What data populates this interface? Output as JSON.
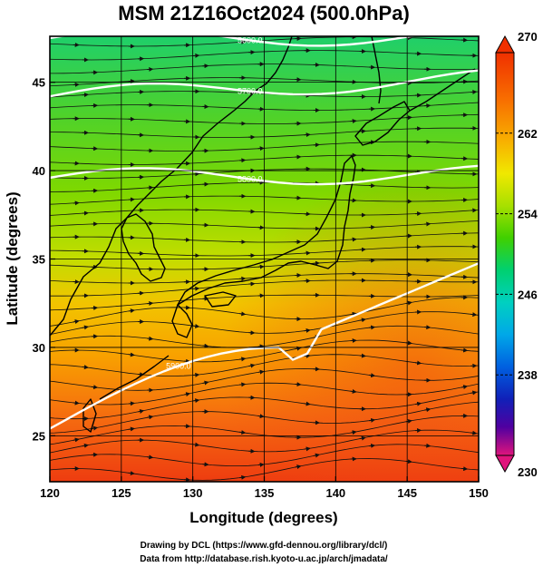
{
  "title": "MSM 21Z16Oct2024 (500.0hPa)",
  "x_axis": {
    "label": "Longitude (degrees)",
    "range": [
      120,
      150
    ],
    "ticks": [
      "120",
      "125",
      "130",
      "135",
      "140",
      "145",
      "150"
    ]
  },
  "y_axis": {
    "label": "Latitude  (degrees)",
    "range": [
      22.4,
      47.6
    ],
    "ticks": [
      "25",
      "30",
      "35",
      "40",
      "45"
    ]
  },
  "colorbar": {
    "min": 230,
    "max": 270,
    "labels": [
      "270",
      "262",
      "254",
      "246",
      "238",
      "230"
    ],
    "colors": [
      "#e0147c",
      "#b000a8",
      "#5000a0",
      "#1020b8",
      "#0060e0",
      "#00a8e8",
      "#00d0c0",
      "#00d070",
      "#40d000",
      "#a8e000",
      "#f0e800",
      "#f8b000",
      "#f87000",
      "#f03000"
    ]
  },
  "contours": {
    "color": "#ffffff",
    "lines": [
      {
        "label": "5600.0",
        "lat_at_120": 47.5,
        "lat_at_150": 47.6
      },
      {
        "label": "5700.0",
        "lat_at_120": 44.2,
        "lat_at_150": 45.2
      },
      {
        "label": "5800.0",
        "lat_at_120": 39.6,
        "lat_at_150": 39.8
      },
      {
        "label": "5900.0",
        "lat_at_120": 25.4,
        "lat_at_150": 34.8
      }
    ]
  },
  "credits": {
    "line1": "Drawing by DCL (https://www.gfd-dennou.org/library/dcl/)",
    "line2": "Data from http://database.rish.kyoto-u.ac.jp/arch/jmadata/"
  }
}
